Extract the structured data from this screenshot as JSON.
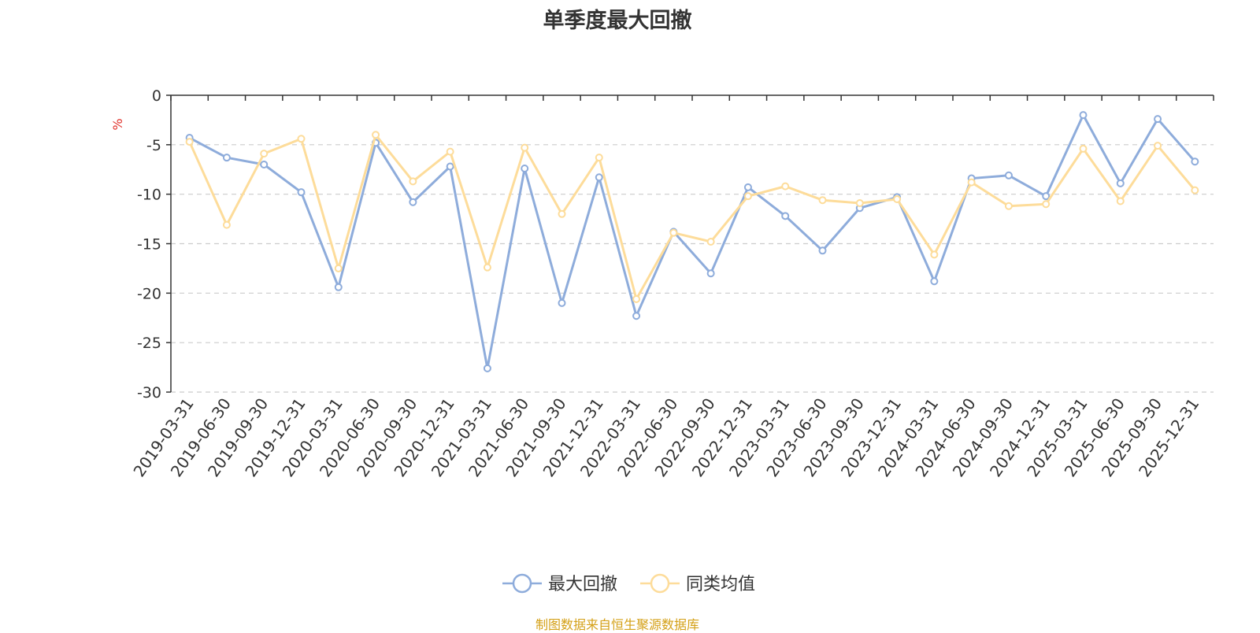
{
  "title": "单季度最大回撤",
  "source": "制图数据来自恒生聚源数据库",
  "colors": {
    "series1": "#8eacdb",
    "series2": "#fddc9a",
    "unit": "#e0302a",
    "source": "#d4a017"
  },
  "chart_data": {
    "type": "line",
    "ylabel": "%",
    "ylim": [
      -30,
      0
    ],
    "yticks": [
      0,
      -5,
      -10,
      -15,
      -20,
      -25,
      -30
    ],
    "grid": true,
    "legend_position": "bottom-center",
    "x": [
      "2019-03-31",
      "2019-06-30",
      "2019-09-30",
      "2019-12-31",
      "2020-03-31",
      "2020-06-30",
      "2020-09-30",
      "2020-12-31",
      "2021-03-31",
      "2021-06-30",
      "2021-09-30",
      "2021-12-31",
      "2022-03-31",
      "2022-06-30",
      "2022-09-30",
      "2022-12-31",
      "2023-03-31",
      "2023-06-30",
      "2023-09-30",
      "2023-12-31",
      "2024-03-31",
      "2024-06-30",
      "2024-09-30",
      "2024-12-31",
      "2025-03-31",
      "2025-06-30",
      "2025-09-30",
      "2025-12-31"
    ],
    "series": [
      {
        "name": "最大回撤",
        "values": [
          -4.3,
          -6.3,
          -7.0,
          -9.8,
          -19.4,
          -4.8,
          -10.8,
          -7.2,
          -27.6,
          -7.4,
          -21.0,
          -8.3,
          -22.3,
          -13.8,
          -18.0,
          -9.3,
          -12.2,
          -15.7,
          -11.4,
          -10.3,
          -18.8,
          -8.4,
          -8.1,
          -10.2,
          -2.0,
          -8.9,
          -2.4,
          -6.7
        ]
      },
      {
        "name": "同类均值",
        "values": [
          -4.7,
          -13.1,
          -5.9,
          -4.4,
          -17.5,
          -4.0,
          -8.7,
          -5.7,
          -17.4,
          -5.3,
          -12.0,
          -6.3,
          -20.6,
          -13.9,
          -14.8,
          -10.2,
          -9.2,
          -10.6,
          -10.9,
          -10.5,
          -16.1,
          -8.8,
          -11.2,
          -11.0,
          -5.4,
          -10.7,
          -5.1,
          -9.6
        ]
      }
    ]
  }
}
